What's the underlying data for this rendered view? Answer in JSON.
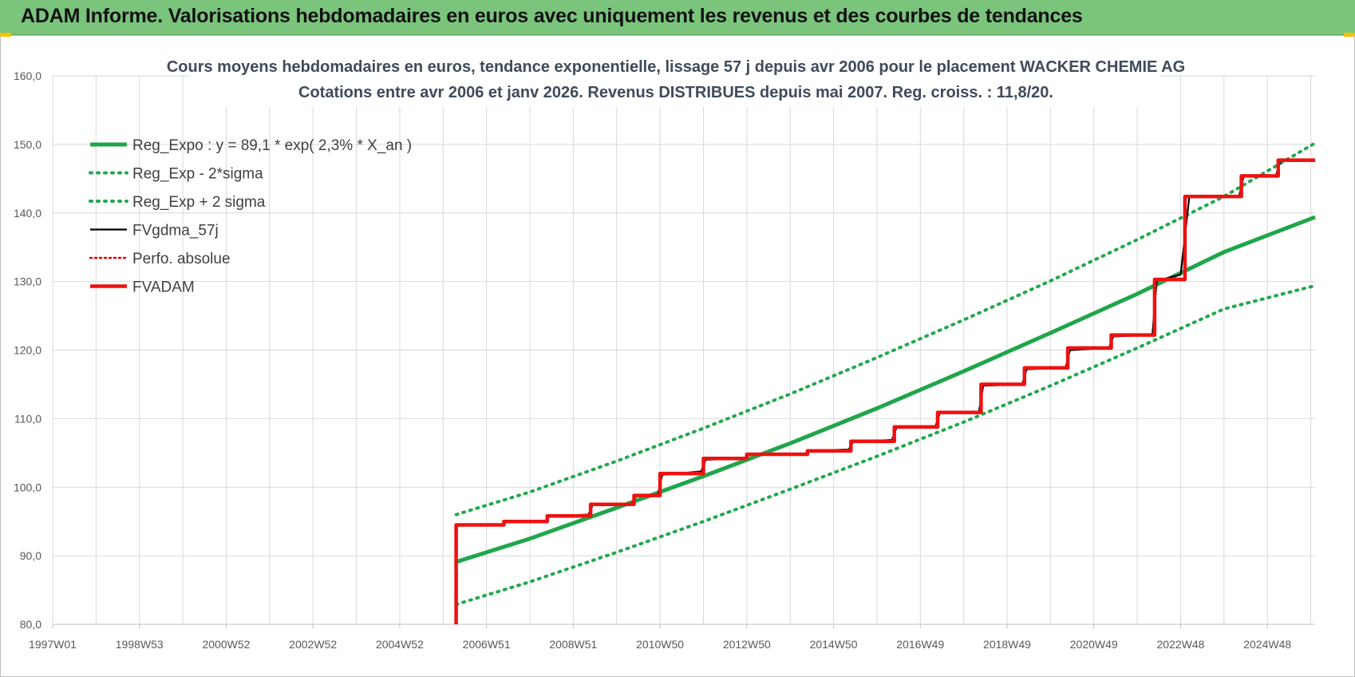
{
  "header": {
    "title": "ADAM Informe. Valorisations hebdomadaires en euros avec uniquement les revenus et des courbes de tendances"
  },
  "colors": {
    "header_bg": "#7ac47c",
    "reg_expo": "#1fa64a",
    "reg_band": "#22a84c",
    "fv": "#000000",
    "perfo": "#e00000",
    "fvadam": "#ee1111",
    "grid": "#d9d9d9"
  },
  "chart_data": {
    "type": "line",
    "title": "Cours moyens hebdomadaires en euros, tendance exponentielle, lissage 57 j depuis avr 2006 pour le placement WACKER CHEMIE AG",
    "subtitle": "Cotations entre avr 2006 et janv 2026. Revenus DISTRIBUES depuis mai 2007. Reg. croiss. : 11,8/20.",
    "xlabel": "",
    "ylabel": "",
    "ylim": [
      80,
      160
    ],
    "y_ticks": [
      "160,0",
      "150,0",
      "140,0",
      "130,0",
      "120,0",
      "110,0",
      "100,0",
      "90,0",
      "80,0"
    ],
    "x_range": [
      1997.0,
      2026.1
    ],
    "x_tick_labels": [
      "1997W01",
      "1998W53",
      "2000W52",
      "2002W52",
      "2004W52",
      "2006W51",
      "2008W51",
      "2010W50",
      "2012W50",
      "2014W50",
      "2016W49",
      "2018W49",
      "2020W49",
      "2022W48",
      "2024W48"
    ],
    "x_ticks": [
      1997.0,
      1999.0,
      2001.0,
      2003.0,
      2005.0,
      2007.0,
      2009.0,
      2011.0,
      2013.0,
      2015.0,
      2017.0,
      2019.0,
      2021.0,
      2023.0,
      2025.0
    ],
    "grid": true,
    "legend_position": "top-left",
    "series": [
      {
        "name": "Reg_Expo : y = 89,1 * exp( 2,3% *  X_an )",
        "style": "solid-thick",
        "x": [
          2006.3,
          2008.0,
          2010.0,
          2012.0,
          2014.0,
          2016.0,
          2018.0,
          2020.0,
          2022.0,
          2024.0,
          2026.1
        ],
        "y": [
          89.1,
          92.5,
          97.0,
          101.6,
          106.4,
          111.5,
          116.9,
          122.5,
          128.2,
          134.3,
          139.4
        ]
      },
      {
        "name": "Reg_Exp - 2*sigma",
        "style": "dotted",
        "x": [
          2006.3,
          2008.0,
          2010.0,
          2012.0,
          2014.0,
          2016.0,
          2018.0,
          2020.0,
          2022.0,
          2024.0,
          2026.1
        ],
        "y": [
          82.9,
          86.2,
          90.5,
          95.0,
          99.7,
          104.5,
          109.5,
          114.8,
          120.3,
          126.0,
          129.4
        ]
      },
      {
        "name": "Reg_Exp + 2 sigma",
        "style": "dotted",
        "x": [
          2006.3,
          2008.0,
          2010.0,
          2012.0,
          2014.0,
          2016.0,
          2018.0,
          2020.0,
          2022.0,
          2024.0,
          2026.1
        ],
        "y": [
          96.0,
          99.3,
          103.8,
          108.6,
          113.6,
          118.9,
          124.4,
          130.1,
          136.1,
          142.4,
          150.2
        ]
      },
      {
        "name": "FVgdma_57j",
        "style": "solid-thin",
        "x": [
          2006.3,
          2006.3,
          2007.35,
          2007.45,
          2008.35,
          2008.45,
          2009.35,
          2009.45,
          2010.35,
          2010.45,
          2010.95,
          2011.05,
          2011.95,
          2012.05,
          2012.95,
          2013.05,
          2014.35,
          2014.45,
          2015.35,
          2015.45,
          2016.35,
          2016.45,
          2017.35,
          2017.45,
          2018.35,
          2018.45,
          2019.35,
          2019.45,
          2020.35,
          2020.45,
          2021.35,
          2021.45,
          2022.35,
          2022.45,
          2023.0,
          2023.2,
          2024.35,
          2024.45,
          2025.2,
          2025.3,
          2026.1
        ],
        "y": [
          80.0,
          94.5,
          94.5,
          95.0,
          95.0,
          95.8,
          96.0,
          97.4,
          97.6,
          98.7,
          98.9,
          101.8,
          102.3,
          104.0,
          104.2,
          104.7,
          104.9,
          105.3,
          105.5,
          106.6,
          106.9,
          108.7,
          108.9,
          110.8,
          111.0,
          114.8,
          115.0,
          117.2,
          117.4,
          120.0,
          120.3,
          122.0,
          122.2,
          130.1,
          131.0,
          142.3,
          142.5,
          145.3,
          145.5,
          147.6,
          147.6
        ]
      },
      {
        "name": "Perfo. absolue",
        "style": "dotted",
        "x": [],
        "y": []
      },
      {
        "name": "FVADAM",
        "style": "step-thick",
        "x": [
          2006.3,
          2006.3,
          2007.4,
          2007.4,
          2008.4,
          2008.4,
          2009.4,
          2009.4,
          2010.4,
          2010.4,
          2011.0,
          2011.0,
          2012.0,
          2012.0,
          2013.0,
          2013.0,
          2014.4,
          2014.4,
          2015.4,
          2015.4,
          2016.4,
          2016.4,
          2017.4,
          2017.4,
          2018.4,
          2018.4,
          2019.4,
          2019.4,
          2020.4,
          2020.4,
          2021.4,
          2021.4,
          2022.4,
          2022.4,
          2023.1,
          2023.1,
          2024.4,
          2024.4,
          2025.25,
          2025.25,
          2026.1
        ],
        "y": [
          80.0,
          94.5,
          94.5,
          95.0,
          95.0,
          95.8,
          95.8,
          97.5,
          97.5,
          98.8,
          98.8,
          102.0,
          102.0,
          104.2,
          104.2,
          104.8,
          104.8,
          105.3,
          105.3,
          106.7,
          106.7,
          108.8,
          108.8,
          110.9,
          110.9,
          115.0,
          115.0,
          117.4,
          117.4,
          120.3,
          120.3,
          122.2,
          122.2,
          130.3,
          130.3,
          142.4,
          142.4,
          145.4,
          145.4,
          147.7,
          147.7
        ]
      }
    ]
  }
}
